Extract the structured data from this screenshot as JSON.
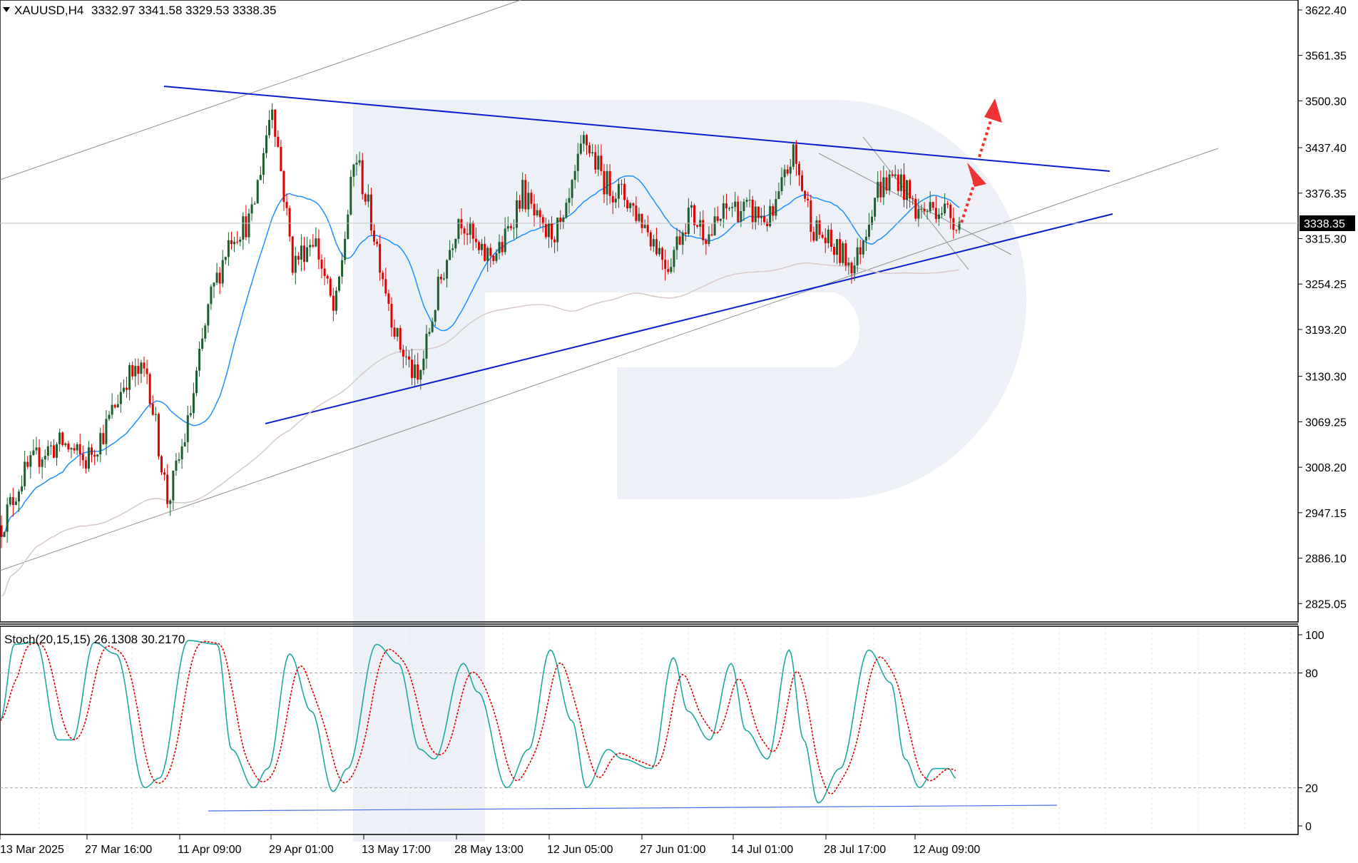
{
  "chart_data": [
    {
      "type": "candlestick",
      "symbol_header": "XAUUSD,H4",
      "ohlc_header": [
        "3332.97",
        "3341.58",
        "3329.53",
        "3338.35"
      ],
      "current_price_label": "3338.35",
      "ylim": [
        2810,
        3630
      ],
      "y_ticks": [
        "3622.40",
        "3561.35",
        "3500.30",
        "3437.40",
        "3376.35",
        "3315.30",
        "3254.25",
        "3193.20",
        "3130.30",
        "3069.25",
        "3008.20",
        "2947.15",
        "2886.10",
        "2825.05"
      ],
      "x_ticks": [
        "13 Mar 2025",
        "27 Mar 16:00",
        "11 Apr 09:00",
        "29 Apr 01:00",
        "13 May 17:00",
        "28 May 13:00",
        "12 Jun 05:00",
        "27 Jun 01:00",
        "14 Jul 01:00",
        "28 Jul 17:00",
        "12 Aug 09:00"
      ],
      "price_path": [
        [
          "13 Mar",
          2930
        ],
        [
          "15 Mar",
          2995
        ],
        [
          "19 Mar",
          3030
        ],
        [
          "21 Mar",
          3040
        ],
        [
          "24 Mar",
          3015
        ],
        [
          "27 Mar",
          3060
        ],
        [
          "31 Mar",
          3130
        ],
        [
          "3 Apr",
          3135
        ],
        [
          "7 Apr",
          2960
        ],
        [
          "9 Apr",
          3070
        ],
        [
          "11 Apr",
          3230
        ],
        [
          "14 Apr",
          3320
        ],
        [
          "18 Apr",
          3340
        ],
        [
          "22 Apr",
          3500
        ],
        [
          "24 Apr",
          3280
        ],
        [
          "29 Apr",
          3320
        ],
        [
          "1 May",
          3210
        ],
        [
          "6 May",
          3430
        ],
        [
          "9 May",
          3310
        ],
        [
          "13 May",
          3180
        ],
        [
          "15 May",
          3120
        ],
        [
          "20 May",
          3250
        ],
        [
          "23 May",
          3350
        ],
        [
          "28 May",
          3290
        ],
        [
          "30 May",
          3300
        ],
        [
          "3 Jun",
          3380
        ],
        [
          "6 Jun",
          3320
        ],
        [
          "10 Jun",
          3330
        ],
        [
          "13 Jun",
          3450
        ],
        [
          "17 Jun",
          3390
        ],
        [
          "20 Jun",
          3370
        ],
        [
          "24 Jun",
          3330
        ],
        [
          "27 Jun",
          3280
        ],
        [
          "1 Jul",
          3350
        ],
        [
          "7 Jul",
          3320
        ],
        [
          "11 Jul",
          3360
        ],
        [
          "14 Jul",
          3350
        ],
        [
          "18 Jul",
          3340
        ],
        [
          "22 Jul",
          3430
        ],
        [
          "25 Jul",
          3330
        ],
        [
          "28 Jul",
          3300
        ],
        [
          "31 Jul",
          3280
        ],
        [
          "4 Aug",
          3380
        ],
        [
          "8 Aug",
          3400
        ],
        [
          "11 Aug",
          3350
        ],
        [
          "13 Aug",
          3360
        ],
        [
          "15 Aug",
          3338
        ]
      ],
      "indicators": {
        "ma_fast_color": "#1e90ff",
        "ma_slow_color": "#d8c8c8",
        "bull_color": "#1c5e2e",
        "bear_color": "#e00000"
      },
      "trendlines": {
        "triangle_color": "#0a1fcc",
        "channel_color": "#909090",
        "forecast_arrow_color": "#ee3333"
      }
    },
    {
      "type": "line",
      "indicator_header": "Stoch(20,15,15) 26.1308 30.2170",
      "ylim": [
        0,
        100
      ],
      "y_ticks": [
        "100",
        "80",
        "20",
        "0"
      ],
      "levels": [
        80,
        20
      ],
      "series": [
        {
          "color": "#20a8a0",
          "style": "solid"
        },
        {
          "color": "#e00000",
          "style": "dotted"
        }
      ],
      "main_path": [
        [
          0,
          55
        ],
        [
          2,
          95
        ],
        [
          5,
          96
        ],
        [
          8,
          45
        ],
        [
          10,
          45
        ],
        [
          13,
          96
        ],
        [
          16,
          90
        ],
        [
          20,
          20
        ],
        [
          22,
          25
        ],
        [
          26,
          97
        ],
        [
          30,
          95
        ],
        [
          32,
          40
        ],
        [
          35,
          20
        ],
        [
          37,
          30
        ],
        [
          40,
          90
        ],
        [
          43,
          60
        ],
        [
          46,
          18
        ],
        [
          48,
          30
        ],
        [
          52,
          95
        ],
        [
          55,
          85
        ],
        [
          58,
          40
        ],
        [
          60,
          35
        ],
        [
          64,
          85
        ],
        [
          66,
          70
        ],
        [
          70,
          20
        ],
        [
          73,
          40
        ],
        [
          76,
          92
        ],
        [
          79,
          55
        ],
        [
          81,
          20
        ],
        [
          84,
          40
        ],
        [
          86,
          35
        ],
        [
          90,
          30
        ],
        [
          93,
          88
        ],
        [
          95,
          60
        ],
        [
          98,
          45
        ],
        [
          101,
          85
        ],
        [
          103,
          50
        ],
        [
          106,
          35
        ],
        [
          109,
          92
        ],
        [
          111,
          45
        ],
        [
          113,
          12
        ],
        [
          116,
          30
        ],
        [
          120,
          92
        ],
        [
          123,
          75
        ],
        [
          125,
          35
        ],
        [
          127,
          20
        ],
        [
          129,
          30
        ],
        [
          131,
          30
        ],
        [
          132,
          25
        ]
      ],
      "trendline_color": "#4a6ee0"
    }
  ]
}
